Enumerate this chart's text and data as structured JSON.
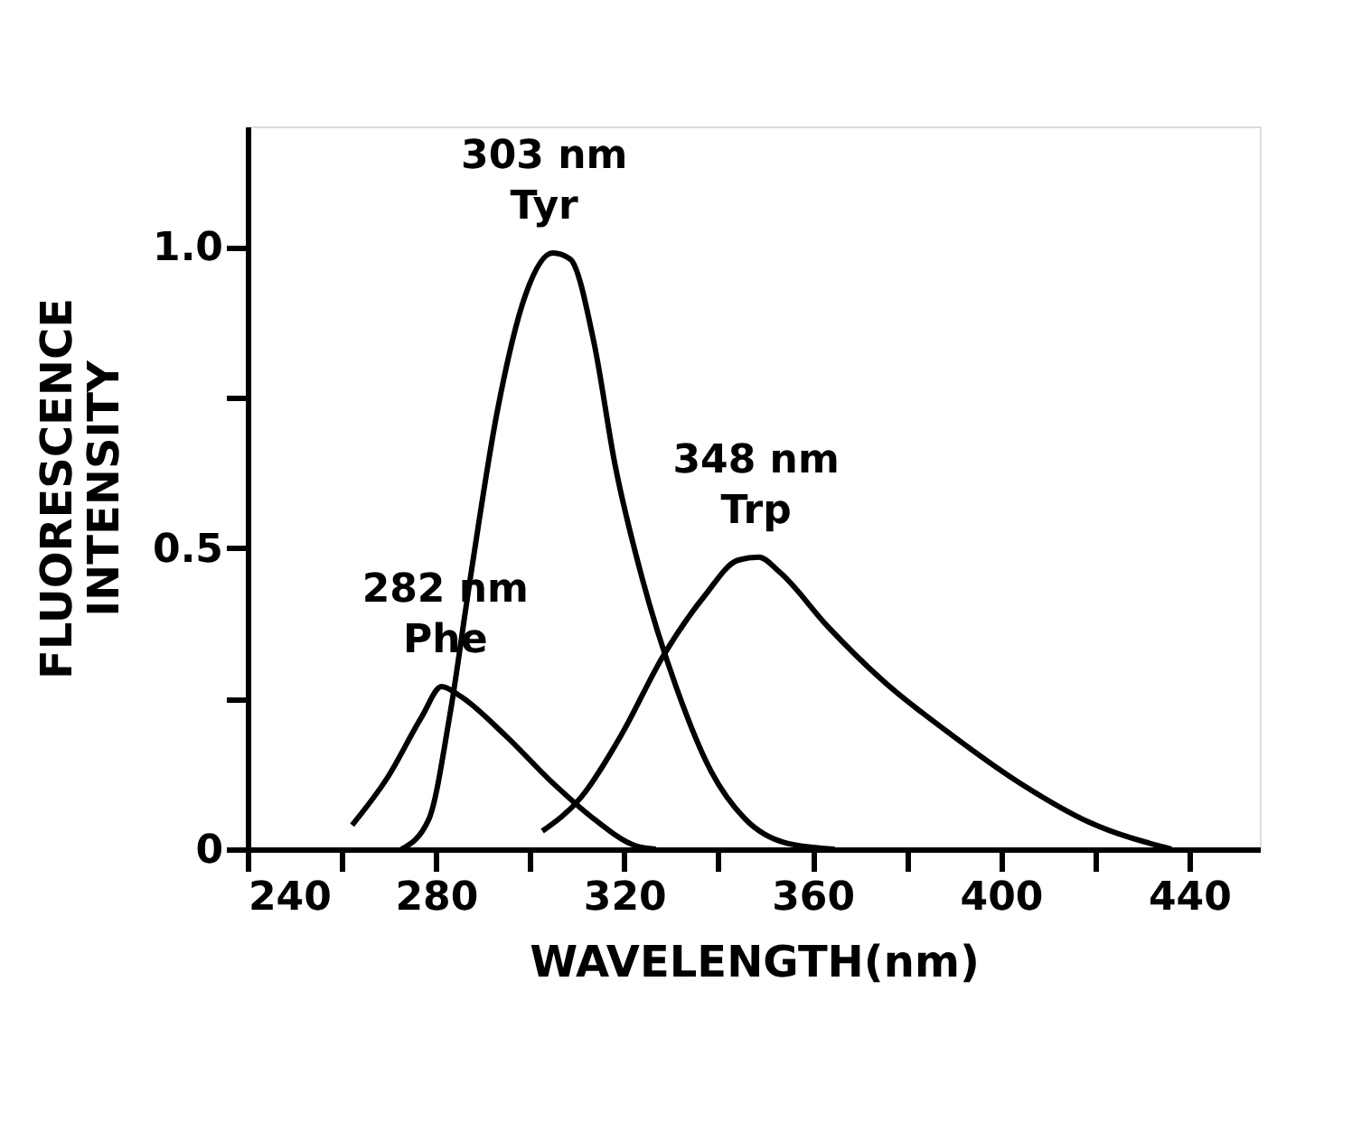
{
  "chart_data": {
    "type": "line",
    "xlabel": "WAVELENGTH(nm)",
    "ylabel": "FLUORESCENCE\nINTENSITY",
    "xlim": [
      240,
      455
    ],
    "ylim": [
      0,
      1.2
    ],
    "xticks": [
      240,
      {
        "value": 260,
        "label": null
      },
      280,
      {
        "value": 300,
        "label": null
      },
      320,
      {
        "value": 340,
        "label": null
      },
      360,
      {
        "value": 380,
        "label": null
      },
      400,
      {
        "value": 420,
        "label": null
      },
      440
    ],
    "yticks": [
      0,
      {
        "value": 0.25,
        "label": null
      },
      0.5,
      {
        "value": 0.75,
        "label": null
      },
      {
        "value": 1.0,
        "label": "1.0"
      }
    ],
    "grid": false,
    "marker": "none",
    "line_style": "solid",
    "series": [
      {
        "color": "#000000",
        "x": [
          262.2,
          269.8,
          277,
          281.2,
          285,
          294.6,
          304.8,
          313.6,
          322.3,
          326.7
        ],
        "values": [
          0.04,
          0.12,
          0.22,
          0.27,
          0.255,
          0.19,
          0.11,
          0.05,
          0.006,
          0
        ]
      },
      {
        "color": "#000000",
        "x": [
          272.7,
          278.5,
          282.9,
          287.3,
          293.1,
          299,
          304.8,
          308.5,
          313.6,
          318,
          323.8,
          331,
          338.4,
          345.7,
          354.5,
          364.7
        ],
        "values": [
          0,
          0.05,
          0.22,
          0.45,
          0.73,
          0.92,
          0.99,
          0.98,
          0.84,
          0.64,
          0.45,
          0.27,
          0.13,
          0.05,
          0.01,
          0
        ]
      },
      {
        "color": "#000000",
        "x": [
          302.6,
          310.7,
          319.4,
          328.2,
          337,
          344.2,
          348.6,
          353,
          363.2,
          374.9,
          389.5,
          404,
          418.7,
          436.2
        ],
        "values": [
          0.03,
          0.085,
          0.19,
          0.32,
          0.42,
          0.48,
          0.485,
          0.46,
          0.37,
          0.28,
          0.19,
          0.11,
          0.045,
          0
        ]
      }
    ],
    "annotations": [
      {
        "text": "282 nm\nPhe",
        "x": 282,
        "y": 0.27
      },
      {
        "text": "303 nm\nTyr",
        "x": 303,
        "y": 0.99
      },
      {
        "text": "348 nm\nTrp",
        "x": 348,
        "y": 0.485
      }
    ]
  }
}
